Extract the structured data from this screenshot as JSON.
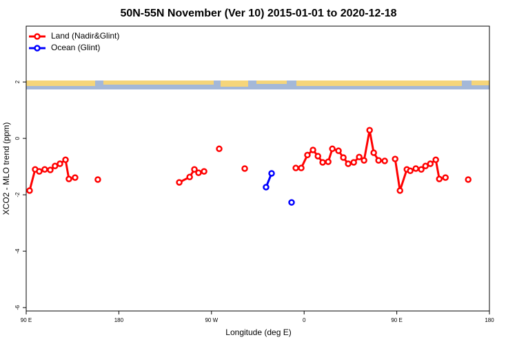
{
  "chart_data": {
    "type": "line",
    "title": "50N-55N November (Ver 10)   2015-01-01 to 2020-12-18",
    "xlabel": "Longitude (deg E)",
    "ylabel": "XCO2 - MLO trend (ppm)",
    "xlim": [
      90,
      540
    ],
    "ylim": [
      -6.12,
      3.98
    ],
    "xticks": [
      {
        "value": 90,
        "label": "90 E"
      },
      180,
      {
        "value": 270,
        "label": "90 W"
      },
      {
        "value": 360,
        "label": "0"
      },
      {
        "value": 450,
        "label": "90 E"
      },
      {
        "value": 540,
        "label": "180"
      }
    ],
    "yticks": [
      -6,
      -4,
      -2,
      0,
      2
    ],
    "legend": "top-left",
    "series": [
      {
        "name": "Land (Nadir&Glint)",
        "color": "#ff0000",
        "x": [
          93.3,
          98.7,
          102.7,
          108,
          113.4,
          118,
          122.8,
          128.2,
          131.5,
          137.5,
          null,
          159.6,
          null,
          238.7,
          248.8,
          253.4,
          257.4,
          262.8,
          null,
          277.5,
          null,
          302.3,
          null,
          351.9,
          357.2,
          363.2,
          368.6,
          373.4,
          378,
          383.4,
          387.4,
          393.4,
          398.1,
          402.8,
          408.2,
          413.5,
          418.2,
          423.6,
          427.6,
          432.3,
          438.3,
          null,
          448.4,
          453.1,
          459.8,
          463.1,
          468.5,
          473.8,
          477.9,
          482.6,
          487.9,
          491.3,
          497.3,
          null,
          519.4
        ],
        "values": [
          -1.85,
          -1.1,
          -1.17,
          -1.1,
          -1.12,
          -0.98,
          -0.9,
          -0.76,
          -1.44,
          -1.39,
          null,
          -1.46,
          null,
          -1.56,
          -1.37,
          -1.1,
          -1.22,
          -1.17,
          null,
          -0.37,
          null,
          -1.07,
          null,
          -1.05,
          -1.05,
          -0.59,
          -0.41,
          -0.63,
          -0.85,
          -0.83,
          -0.37,
          -0.44,
          -0.68,
          -0.9,
          -0.85,
          -0.66,
          -0.78,
          0.29,
          -0.51,
          -0.78,
          -0.8,
          null,
          -0.73,
          -1.85,
          -1.1,
          -1.15,
          -1.07,
          -1.1,
          -0.98,
          -0.9,
          -0.76,
          -1.44,
          -1.39,
          null,
          -1.46
        ]
      },
      {
        "name": "Ocean (Glint)",
        "color": "#0000ff",
        "x": [
          323,
          328.4,
          null,
          347.8
        ],
        "values": [
          -1.73,
          -1.24,
          null,
          -2.27
        ]
      }
    ]
  }
}
